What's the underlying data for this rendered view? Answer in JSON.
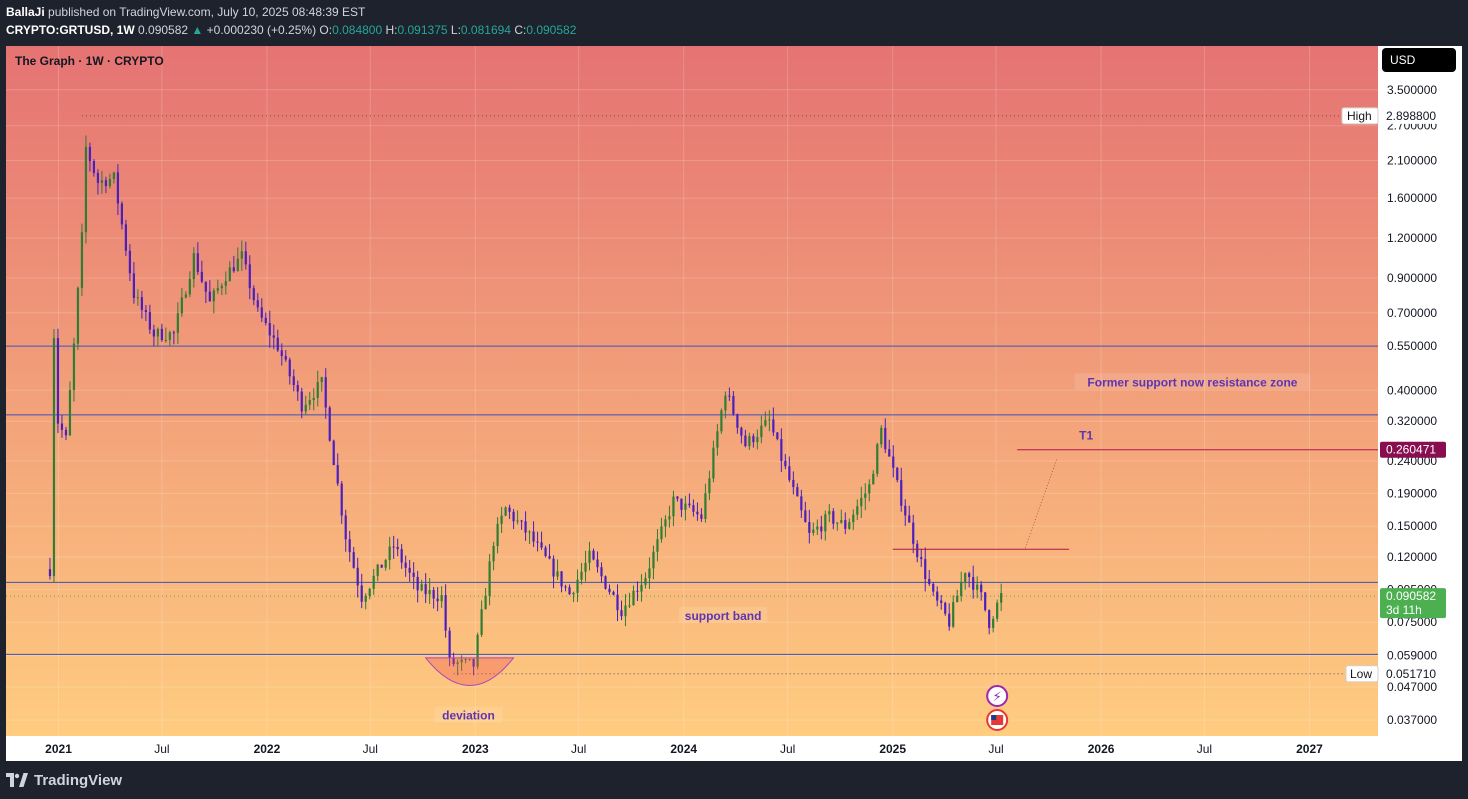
{
  "header": {
    "author": "BallaJi",
    "published_text": "published on TradingView.com, July 10, 2025 08:48:39 EST",
    "symbol": "CRYPTO:GRTUSD, 1W",
    "last": "0.090582",
    "change": "+0.000230 (+0.25%)",
    "open_label": "O:",
    "open": "0.084800",
    "high_label": "H:",
    "high": "0.091375",
    "low_label": "L:",
    "low": "0.081694",
    "close_label": "C:",
    "close": "0.090582"
  },
  "pane_title": "The Graph · 1W · CRYPTO",
  "currency_button": "USD",
  "footer": {
    "brand": "TradingView",
    "logo_icon": "tradingview-logo-icon"
  },
  "colors": {
    "background": "#1e222d",
    "gradient_top": "#e57373",
    "gradient_bottom": "#ffcc80",
    "candle": "#2e7d32",
    "candle_down": "#4a1fbe",
    "level_line": "#3f51b5",
    "target_line": "#b0164c",
    "price_badge": "#4caf50",
    "target_badge": "#880e4f",
    "annotation_text": "#5e35b1"
  },
  "chart_data": {
    "type": "candlestick",
    "scale": "log",
    "ylim": [
      0.033,
      4.8
    ],
    "x_range": [
      "2020-10-01",
      "2027-05-01"
    ],
    "y_tick_labels": [
      "3.500000",
      "2.700000",
      "2.100000",
      "1.600000",
      "1.200000",
      "0.900000",
      "0.700000",
      "0.550000",
      "0.400000",
      "0.320000",
      "0.240000",
      "0.190000",
      "0.150000",
      "0.120000",
      "0.095000",
      "0.075000",
      "0.059000",
      "0.047000",
      "0.037000"
    ],
    "y_ticks": [
      3.5,
      2.7,
      2.1,
      1.6,
      1.2,
      0.9,
      0.7,
      0.55,
      0.4,
      0.32,
      0.24,
      0.19,
      0.15,
      0.12,
      0.095,
      0.075,
      0.059,
      0.047,
      0.037
    ],
    "x_tick_labels": [
      "2021",
      "Jul",
      "2022",
      "Jul",
      "2023",
      "Jul",
      "2024",
      "Jul",
      "2025",
      "Jul",
      "2026",
      "Jul",
      "2027"
    ],
    "x_ticks": [
      "2021-01-01",
      "2021-07-01",
      "2022-01-01",
      "2022-07-01",
      "2023-01-01",
      "2023-07-01",
      "2024-01-01",
      "2024-07-01",
      "2025-01-01",
      "2025-07-01",
      "2026-01-01",
      "2026-07-01",
      "2027-01-01"
    ],
    "x_tick_bold": [
      true,
      false,
      true,
      false,
      true,
      false,
      true,
      false,
      true,
      false,
      true,
      false,
      true
    ],
    "price_keypoints": [
      [
        "2020-12-17",
        0.11
      ],
      [
        "2020-12-24",
        0.6
      ],
      [
        "2020-12-31",
        0.32
      ],
      [
        "2021-01-14",
        0.28
      ],
      [
        "2021-01-28",
        0.55
      ],
      [
        "2021-02-11",
        1.2
      ],
      [
        "2021-02-18",
        2.3
      ],
      [
        "2021-03-11",
        1.8
      ],
      [
        "2021-04-08",
        1.85
      ],
      [
        "2021-05-13",
        0.8
      ],
      [
        "2021-06-17",
        0.6
      ],
      [
        "2021-07-22",
        0.6
      ],
      [
        "2021-08-26",
        1.05
      ],
      [
        "2021-09-23",
        0.75
      ],
      [
        "2021-10-21",
        0.92
      ],
      [
        "2021-11-18",
        1.05
      ],
      [
        "2021-12-16",
        0.7
      ],
      [
        "2022-01-20",
        0.55
      ],
      [
        "2022-03-03",
        0.36
      ],
      [
        "2022-04-07",
        0.42
      ],
      [
        "2022-05-19",
        0.14
      ],
      [
        "2022-06-16",
        0.09
      ],
      [
        "2022-08-11",
        0.13
      ],
      [
        "2022-09-22",
        0.095
      ],
      [
        "2022-11-03",
        0.09
      ],
      [
        "2022-11-17",
        0.056
      ],
      [
        "2022-12-29",
        0.055
      ],
      [
        "2023-02-02",
        0.135
      ],
      [
        "2023-02-23",
        0.17
      ],
      [
        "2023-04-06",
        0.14
      ],
      [
        "2023-06-15",
        0.092
      ],
      [
        "2023-07-20",
        0.12
      ],
      [
        "2023-09-14",
        0.082
      ],
      [
        "2023-10-26",
        0.105
      ],
      [
        "2023-12-14",
        0.18
      ],
      [
        "2024-02-01",
        0.16
      ],
      [
        "2024-03-14",
        0.4
      ],
      [
        "2024-04-18",
        0.27
      ],
      [
        "2024-05-30",
        0.32
      ],
      [
        "2024-06-20",
        0.245
      ],
      [
        "2024-08-08",
        0.14
      ],
      [
        "2024-09-12",
        0.16
      ],
      [
        "2024-10-10",
        0.15
      ],
      [
        "2024-11-21",
        0.2
      ],
      [
        "2024-12-12",
        0.3
      ],
      [
        "2025-01-09",
        0.2
      ],
      [
        "2025-02-13",
        0.125
      ],
      [
        "2025-03-13",
        0.09
      ],
      [
        "2025-04-10",
        0.075
      ],
      [
        "2025-05-08",
        0.11
      ],
      [
        "2025-06-05",
        0.09
      ],
      [
        "2025-06-19",
        0.075
      ],
      [
        "2025-07-10",
        0.0906
      ]
    ],
    "all_time_high": {
      "label": "High",
      "value": "2.898800",
      "y": 2.8988,
      "x": "2021-02-11"
    },
    "all_time_low": {
      "label": "Low",
      "value": "0.051710",
      "y": 0.05171,
      "x": "2022-11-24"
    },
    "last_price": {
      "value": "0.090582",
      "countdown": "3d 11h",
      "y": 0.090582
    },
    "target_level": {
      "value": "0.260471",
      "y": 0.260471,
      "label": "T1",
      "x_start": "2025-08-07",
      "x_end": "2027-05-01"
    },
    "horizontal_levels": [
      0.55,
      0.335,
      0.1,
      0.0595
    ],
    "red_line": {
      "y": 0.127,
      "x_start": "2025-01-01",
      "x_end": "2025-11-06"
    },
    "projection": {
      "from": [
        "2025-08-21",
        0.128
      ],
      "to": [
        "2025-10-16",
        0.245
      ]
    },
    "annotations": [
      {
        "text": "Former support now resistance zone",
        "x": "2026-06-10",
        "y": 0.42
      },
      {
        "text": "support band",
        "x": "2024-03-10",
        "y": 0.078
      },
      {
        "text": "deviation",
        "x": "2022-12-20",
        "y": 0.038
      }
    ],
    "deviation_arc": {
      "x_start": "2022-10-06",
      "x_end": "2023-03-09",
      "y_top": 0.058,
      "y_bottom": 0.0475
    }
  }
}
